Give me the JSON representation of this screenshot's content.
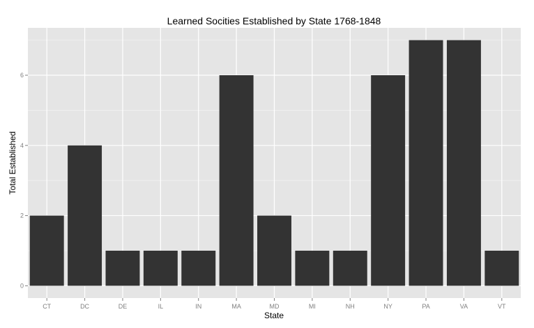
{
  "chart_data": {
    "type": "bar",
    "title": "Learned Socities Established by State 1768-1848",
    "xlabel": "State",
    "ylabel": "Total Established",
    "categories": [
      "CT",
      "DC",
      "DE",
      "IL",
      "IN",
      "MA",
      "MD",
      "MI",
      "NH",
      "NY",
      "PA",
      "VA",
      "VT"
    ],
    "values": [
      2,
      4,
      1,
      1,
      1,
      6,
      2,
      1,
      1,
      6,
      7,
      7,
      1
    ],
    "yticks": [
      0,
      2,
      4,
      6
    ],
    "ytick_labels": [
      "0",
      "2",
      "4",
      "6"
    ],
    "ylim": [
      -0.35,
      7.35
    ],
    "grid": true,
    "legend": "none",
    "colors": {
      "bar": "#333333",
      "panel": "#e5e5e5",
      "grid_major": "#ffffff",
      "grid_minor": "#f2f2f2"
    }
  }
}
